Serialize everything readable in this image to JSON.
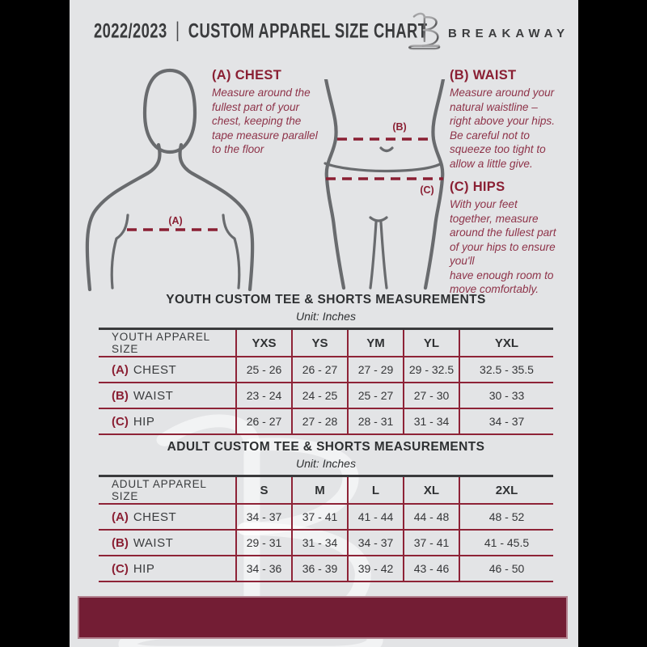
{
  "header": {
    "season": "2022/2023",
    "divider": "|",
    "title": "CUSTOM APPAREL SIZE CHART",
    "brand": "BREAKAWAY"
  },
  "diagram": {
    "label_a": "(A)",
    "label_b": "(B)",
    "label_c": "(C)"
  },
  "sections": {
    "chest": {
      "heading": "(A) CHEST",
      "body": "Measure around the\nfullest part of your\nchest, keeping the\ntape measure parallel\nto the floor"
    },
    "waist": {
      "heading": "(B) WAIST",
      "body": "Measure around your\nnatural waistline –\nright above your hips.\nBe careful not to\nsqueeze too tight to\nallow a little give."
    },
    "hips": {
      "heading": "(C) HIPS",
      "body": "With your feet\ntogether, measure\naround the fullest part\nof your hips to ensure\nyou'll\nhave enough room to\nmove comfortably."
    }
  },
  "youth_table": {
    "title": "YOUTH CUSTOM TEE & SHORTS MEASUREMENTS",
    "unit": "Unit: Inches",
    "header_label": "YOUTH APPAREL SIZE",
    "sizes": [
      "YXS",
      "YS",
      "YM",
      "YL",
      "YXL"
    ],
    "rows": [
      {
        "prefix": "(A)",
        "label": "CHEST",
        "values": [
          "25 - 26",
          "26 - 27",
          "27 - 29",
          "29 - 32.5",
          "32.5 - 35.5"
        ]
      },
      {
        "prefix": "(B)",
        "label": "WAIST",
        "values": [
          "23 - 24",
          "24 - 25",
          "25 - 27",
          "27 - 30",
          "30 - 33"
        ]
      },
      {
        "prefix": "(C)",
        "label": "HIP",
        "values": [
          "26 - 27",
          "27 - 28",
          "28 - 31",
          "31 - 34",
          "34 - 37"
        ]
      }
    ]
  },
  "adult_table": {
    "title": "ADULT CUSTOM TEE & SHORTS MEASUREMENTS",
    "unit": "Unit: Inches",
    "header_label": "ADULT APPAREL SIZE",
    "sizes": [
      "S",
      "M",
      "L",
      "XL",
      "2XL"
    ],
    "rows": [
      {
        "prefix": "(A)",
        "label": "CHEST",
        "values": [
          "34 - 37",
          "37 - 41",
          "41 - 44",
          "44 - 48",
          "48 - 52"
        ]
      },
      {
        "prefix": "(B)",
        "label": "WAIST",
        "values": [
          "29 - 31",
          "31 - 34",
          "34 - 37",
          "37 - 41",
          "41 - 45.5"
        ]
      },
      {
        "prefix": "(C)",
        "label": "HIP",
        "values": [
          "34 - 36",
          "36 - 39",
          "39 - 42",
          "43 - 46",
          "46 - 50"
        ]
      }
    ]
  },
  "watermark": {
    "icon": "breakaway-monogram"
  },
  "colors": {
    "maroon_accent": "#8a1f33",
    "footer_bar": "#731d34",
    "table_border": "#8e2337",
    "body_text": "#8e3349",
    "outline_gray": "#696b6e",
    "card_bg": "#e3e4e6",
    "frame": "#000000"
  }
}
